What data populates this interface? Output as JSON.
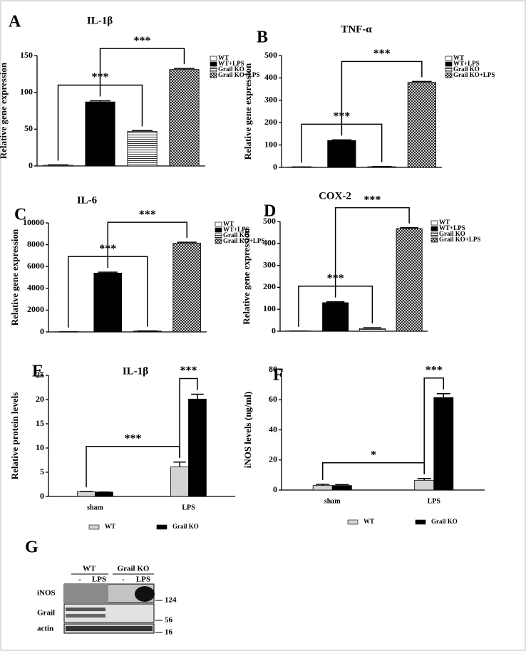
{
  "chart_data": [
    {
      "panel": "A",
      "type": "bar",
      "title": "IL-1β",
      "y_label": "Relative gene expression",
      "categories": [
        null
      ],
      "series": [
        {
          "name": "WT",
          "color": "#ffffff",
          "values": [
            1
          ],
          "errors": [
            0.5
          ]
        },
        {
          "name": "WT+LPS",
          "color": "#000000",
          "values": [
            87
          ],
          "errors": [
            1.5
          ]
        },
        {
          "name": "Grail KO",
          "color": "#ffffff",
          "pattern": "hlines",
          "values": [
            47
          ],
          "errors": [
            1
          ]
        },
        {
          "name": "Grail KO+LPS",
          "color": "#ffffff",
          "pattern": "crosshatch",
          "values": [
            131
          ],
          "errors": [
            1.5
          ]
        }
      ],
      "ylim": [
        0,
        150
      ],
      "yticks": [
        0,
        50,
        100,
        150
      ],
      "legend": "right",
      "brackets": [
        {
          "label": "***",
          "between": [
            [
              0,
              0
            ],
            [
              2,
              0
            ]
          ]
        },
        {
          "label": "***",
          "between": [
            [
              1,
              0
            ],
            [
              3,
              0
            ]
          ]
        }
      ]
    },
    {
      "panel": "B",
      "type": "bar",
      "title": "TNF-α",
      "y_label": "Relative gene expression",
      "categories": [
        null
      ],
      "series": [
        {
          "name": "WT",
          "color": "#ffffff",
          "values": [
            1
          ],
          "errors": [
            1
          ]
        },
        {
          "name": "WT+LPS",
          "color": "#000000",
          "values": [
            120
          ],
          "errors": [
            3
          ]
        },
        {
          "name": "Grail KO",
          "color": "#ffffff",
          "pattern": "hlines",
          "values": [
            3
          ],
          "errors": [
            1
          ]
        },
        {
          "name": "Grail KO+LPS",
          "color": "#ffffff",
          "pattern": "crosshatch",
          "values": [
            380
          ],
          "errors": [
            4
          ]
        }
      ],
      "ylim": [
        0,
        500
      ],
      "yticks": [
        0,
        100,
        200,
        300,
        400,
        500
      ],
      "legend": "right",
      "brackets": [
        {
          "label": "***",
          "between": [
            [
              0,
              0
            ],
            [
              2,
              0
            ]
          ]
        },
        {
          "label": "***",
          "between": [
            [
              1,
              0
            ],
            [
              3,
              0
            ]
          ]
        }
      ]
    },
    {
      "panel": "C",
      "type": "bar",
      "title": "IL-6",
      "y_label": "Relative gene expression",
      "categories": [
        null
      ],
      "series": [
        {
          "name": "WT",
          "color": "#ffffff",
          "values": [
            10
          ],
          "errors": [
            0
          ]
        },
        {
          "name": "WT+LPS",
          "color": "#000000",
          "values": [
            5400
          ],
          "errors": [
            80
          ]
        },
        {
          "name": "Grail KO",
          "color": "#ffffff",
          "pattern": "hlines",
          "values": [
            80
          ],
          "errors": [
            10
          ]
        },
        {
          "name": "Grail KO+LPS",
          "color": "#ffffff",
          "pattern": "crosshatch",
          "values": [
            8150
          ],
          "errors": [
            80
          ]
        }
      ],
      "ylim": [
        0,
        10000
      ],
      "yticks": [
        0,
        2000,
        4000,
        6000,
        8000,
        10000
      ],
      "legend": "right",
      "brackets": [
        {
          "label": "***",
          "between": [
            [
              0,
              0
            ],
            [
              2,
              0
            ]
          ]
        },
        {
          "label": "***",
          "between": [
            [
              1,
              0
            ],
            [
              3,
              0
            ]
          ]
        }
      ]
    },
    {
      "panel": "D",
      "type": "bar",
      "title": "COX-2",
      "y_label": "Relative gene expression",
      "categories": [
        null
      ],
      "series": [
        {
          "name": "WT",
          "color": "#ffffff",
          "values": [
            1
          ],
          "errors": [
            0
          ]
        },
        {
          "name": "WT+LPS",
          "color": "#000000",
          "values": [
            130
          ],
          "errors": [
            4
          ]
        },
        {
          "name": "Grail KO",
          "color": "#ffffff",
          "pattern": "hlines",
          "values": [
            12
          ],
          "errors": [
            4
          ]
        },
        {
          "name": "Grail KO+LPS",
          "color": "#ffffff",
          "pattern": "crosshatch",
          "values": [
            468
          ],
          "errors": [
            4
          ]
        }
      ],
      "ylim": [
        0,
        500
      ],
      "yticks": [
        0,
        100,
        200,
        300,
        400,
        500
      ],
      "legend": "right",
      "brackets": [
        {
          "label": "***",
          "between": [
            [
              0,
              0
            ],
            [
              2,
              0
            ]
          ]
        },
        {
          "label": "***",
          "between": [
            [
              1,
              0
            ],
            [
              3,
              0
            ]
          ]
        }
      ]
    },
    {
      "panel": "E",
      "type": "bar",
      "title": "IL-1β",
      "y_label": "Relative protein levels",
      "categories": [
        "sham",
        "LPS"
      ],
      "series": [
        {
          "name": "WT",
          "color": "#d3d3d3",
          "values": [
            1.0,
            6.1
          ],
          "errors": [
            0,
            1.0
          ]
        },
        {
          "name": "Grail KO",
          "color": "#000000",
          "values": [
            0.9,
            20.1
          ],
          "errors": [
            0,
            1.0
          ]
        }
      ],
      "ylim": [
        0,
        25
      ],
      "yticks": [
        0,
        5,
        10,
        15,
        20,
        25
      ],
      "legend": "bottom",
      "brackets": [
        {
          "label": "***",
          "between": [
            [
              0,
              0
            ],
            [
              0,
              1
            ]
          ]
        },
        {
          "label": "***",
          "between": [
            [
              0,
              1
            ],
            [
              1,
              1
            ]
          ]
        }
      ]
    },
    {
      "panel": "F",
      "type": "bar",
      "y_label": "iNOS levels (ng/ml)",
      "categories": [
        "sham",
        "LPS"
      ],
      "series": [
        {
          "name": "WT",
          "color": "#d3d3d3",
          "values": [
            3,
            6.5
          ],
          "errors": [
            0.8,
            1.2
          ]
        },
        {
          "name": "Grail KO",
          "color": "#000000",
          "values": [
            3,
            61.5
          ],
          "errors": [
            0.6,
            2.5
          ]
        }
      ],
      "ylim": [
        0,
        80
      ],
      "yticks": [
        0,
        20,
        40,
        60,
        80
      ],
      "legend": "bottom",
      "brackets": [
        {
          "label": "*",
          "between": [
            [
              0,
              0
            ],
            [
              0,
              1
            ]
          ]
        },
        {
          "label": "***",
          "between": [
            [
              0,
              1
            ],
            [
              1,
              1
            ]
          ]
        }
      ]
    }
  ],
  "blot": {
    "panel": "G",
    "groups": [
      "WT",
      "Grail KO"
    ],
    "lanes": [
      "-",
      "LPS",
      "-",
      "LPS"
    ],
    "rows": [
      "iNOS",
      "Grail",
      "actin"
    ],
    "markers": [
      124,
      56,
      16
    ]
  }
}
